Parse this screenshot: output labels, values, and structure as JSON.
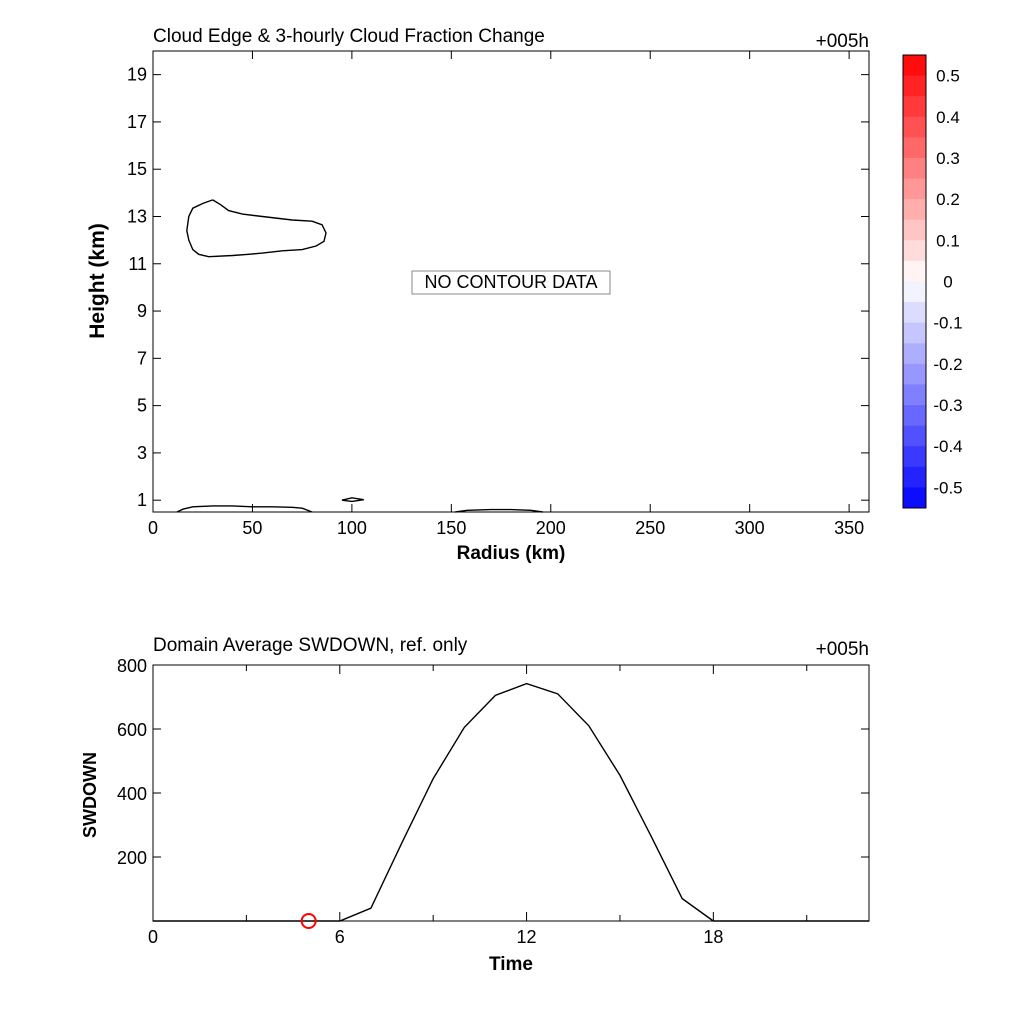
{
  "chart_data": [
    {
      "type": "contour",
      "title": "Cloud Edge & 3-hourly Cloud Fraction Change",
      "time_label": "+005h",
      "xlabel": "Radius (km)",
      "ylabel": "Height (km)",
      "xlim": [
        0,
        360
      ],
      "ylim": [
        0.5,
        20
      ],
      "x_ticks": [
        0,
        50,
        100,
        150,
        200,
        250,
        300,
        350
      ],
      "y_ticks": [
        1,
        3,
        5,
        7,
        9,
        11,
        13,
        15,
        17,
        19
      ],
      "annotation": "NO CONTOUR DATA",
      "colorbar": {
        "ticks": [
          "0.5",
          "0.4",
          "0.3",
          "0.2",
          "0.1",
          "0",
          "-0.1",
          "-0.2",
          "-0.3",
          "-0.4",
          "-0.5"
        ],
        "range": [
          -0.55,
          0.55
        ],
        "max_color": "#ff0000",
        "mid_color": "#ffffff",
        "min_color": "#0000ff"
      },
      "cloud_edges": [
        {
          "points": [
            [
              30,
              13.7
            ],
            [
              34,
              13.5
            ],
            [
              38,
              13.25
            ],
            [
              45,
              13.1
            ],
            [
              55,
              13.0
            ],
            [
              70,
              12.85
            ],
            [
              80,
              12.8
            ],
            [
              85,
              12.65
            ],
            [
              87,
              12.3
            ],
            [
              86,
              11.95
            ],
            [
              82,
              11.75
            ],
            [
              75,
              11.6
            ],
            [
              65,
              11.55
            ],
            [
              55,
              11.45
            ],
            [
              48,
              11.4
            ],
            [
              40,
              11.35
            ],
            [
              28,
              11.3
            ],
            [
              23,
              11.4
            ],
            [
              20,
              11.6
            ],
            [
              18,
              12.0
            ],
            [
              17,
              12.4
            ],
            [
              18,
              13.0
            ],
            [
              20,
              13.35
            ],
            [
              25,
              13.55
            ],
            [
              30,
              13.7
            ]
          ]
        },
        {
          "points": [
            [
              12,
              0.5
            ],
            [
              15,
              0.62
            ],
            [
              20,
              0.72
            ],
            [
              30,
              0.76
            ],
            [
              40,
              0.76
            ],
            [
              50,
              0.72
            ],
            [
              60,
              0.72
            ],
            [
              70,
              0.7
            ],
            [
              75,
              0.66
            ],
            [
              80,
              0.5
            ]
          ]
        },
        {
          "points": [
            [
              95,
              1.0
            ],
            [
              100,
              1.1
            ],
            [
              106,
              1.02
            ],
            [
              100,
              0.95
            ],
            [
              95,
              1.0
            ]
          ]
        },
        {
          "points": [
            [
              152,
              0.5
            ],
            [
              158,
              0.57
            ],
            [
              170,
              0.6
            ],
            [
              180,
              0.6
            ],
            [
              190,
              0.57
            ],
            [
              196,
              0.5
            ]
          ]
        }
      ]
    },
    {
      "type": "line",
      "title": "Domain Average SWDOWN, ref. only",
      "time_label": "+005h",
      "xlabel": "Time",
      "ylabel": "SWDOWN",
      "xlim": [
        0,
        23
      ],
      "ylim": [
        0,
        800
      ],
      "x_ticks": [
        0,
        6,
        12,
        18
      ],
      "y_ticks": [
        200,
        400,
        600,
        800
      ],
      "series": [
        {
          "x": [
            0,
            1,
            2,
            3,
            4,
            5,
            6,
            7,
            8,
            9,
            10,
            11,
            12,
            13,
            14,
            15,
            16,
            17,
            18,
            19,
            20,
            21,
            22,
            23
          ],
          "values": [
            0,
            0,
            0,
            0,
            0,
            0,
            0,
            40,
            245,
            445,
            605,
            705,
            742,
            710,
            610,
            455,
            265,
            70,
            0,
            0,
            0,
            0,
            0,
            0
          ],
          "color": "#000000"
        }
      ],
      "marker": {
        "x": 5,
        "y": 0,
        "color": "#ff0000",
        "shape": "circle"
      }
    }
  ]
}
